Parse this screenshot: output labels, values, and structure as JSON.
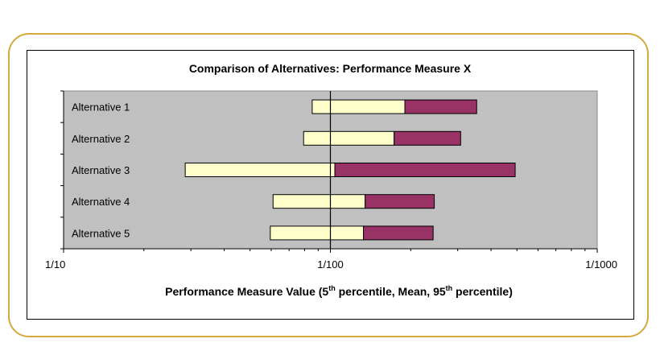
{
  "chart_data": {
    "type": "bar",
    "orientation": "horizontal",
    "stacked_range": true,
    "title": "Comparison of Alternatives: Performance Measure X",
    "xlabel_parts": [
      "Performance Measure Value (5",
      "th",
      " percentile, Mean, 95",
      "th",
      " percentile)"
    ],
    "x_scale": "log",
    "x_range": [
      0.1,
      0.001
    ],
    "x_ticks": [
      {
        "value": 0.1,
        "label": "1/10"
      },
      {
        "value": 0.01,
        "label": "1/100"
      },
      {
        "value": 0.001,
        "label": "1/1000"
      }
    ],
    "grid": false,
    "legend": "none",
    "categories": [
      "Alternative 1",
      "Alternative 2",
      "Alternative 3",
      "Alternative 4",
      "Alternative 5"
    ],
    "series": [
      {
        "role": "p5-to-mean",
        "color": "#ffffcc",
        "values": [
          [
            0.0117,
            0.00526
          ],
          [
            0.0126,
            0.00577
          ],
          [
            0.035,
            0.00962
          ],
          [
            0.0164,
            0.00741
          ],
          [
            0.0168,
            0.00752
          ]
        ]
      },
      {
        "role": "mean-to-p95",
        "color": "#993366",
        "values": [
          [
            0.00526,
            0.00283
          ],
          [
            0.00577,
            0.00325
          ],
          [
            0.00962,
            0.00203
          ],
          [
            0.00741,
            0.00408
          ],
          [
            0.00752,
            0.00412
          ]
        ]
      }
    ],
    "plot_background": "#c0c0c0",
    "reference_line_at": 0.01
  }
}
